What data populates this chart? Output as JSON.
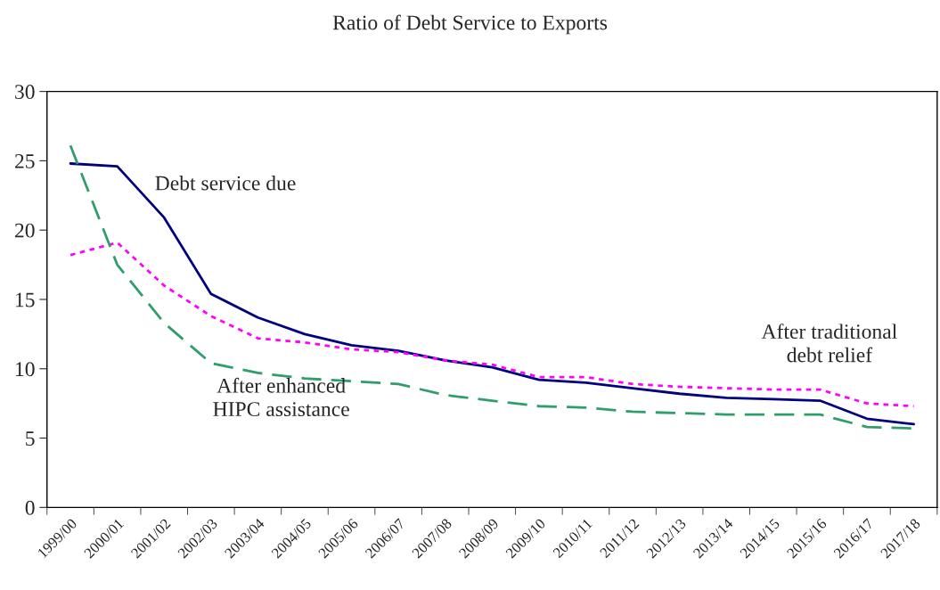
{
  "chart_data": {
    "type": "line",
    "title": "Ratio of Debt Service to Exports",
    "categories": [
      "1999/00",
      "2000/01",
      "2001/02",
      "2002/03",
      "2003/04",
      "2004/05",
      "2005/06",
      "2006/07",
      "2007/08",
      "2008/09",
      "2009/10",
      "2010/11",
      "2011/12",
      "2012/13",
      "2013/14",
      "2014/15",
      "2015/16",
      "2016/17",
      "2017/18"
    ],
    "series": [
      {
        "name": "Debt service due",
        "color": "#000080",
        "line_style": "solid",
        "values": [
          24.8,
          24.6,
          20.9,
          15.4,
          13.7,
          12.5,
          11.7,
          11.3,
          10.6,
          10.1,
          9.2,
          9.0,
          8.6,
          8.2,
          7.9,
          7.8,
          7.7,
          6.4,
          6.0
        ]
      },
      {
        "name": "After traditional debt relief",
        "color": "#ff00ff",
        "line_style": "dotted",
        "values": [
          18.2,
          19.1,
          16.0,
          13.8,
          12.2,
          11.9,
          11.4,
          11.2,
          10.6,
          10.3,
          9.4,
          9.4,
          8.9,
          8.7,
          8.6,
          8.5,
          8.5,
          7.5,
          7.3
        ]
      },
      {
        "name": "After enhanced HIPC assistance",
        "color": "#2e9e6a",
        "line_style": "dashed",
        "values": [
          26.1,
          17.5,
          13.3,
          10.4,
          9.7,
          9.3,
          9.1,
          8.9,
          8.1,
          7.7,
          7.3,
          7.2,
          6.9,
          6.8,
          6.7,
          6.7,
          6.7,
          5.8,
          5.7
        ]
      }
    ],
    "ylim": [
      0,
      30
    ],
    "yticks": [
      0,
      5,
      10,
      15,
      20,
      25,
      30
    ],
    "grid": false,
    "legend": false
  }
}
